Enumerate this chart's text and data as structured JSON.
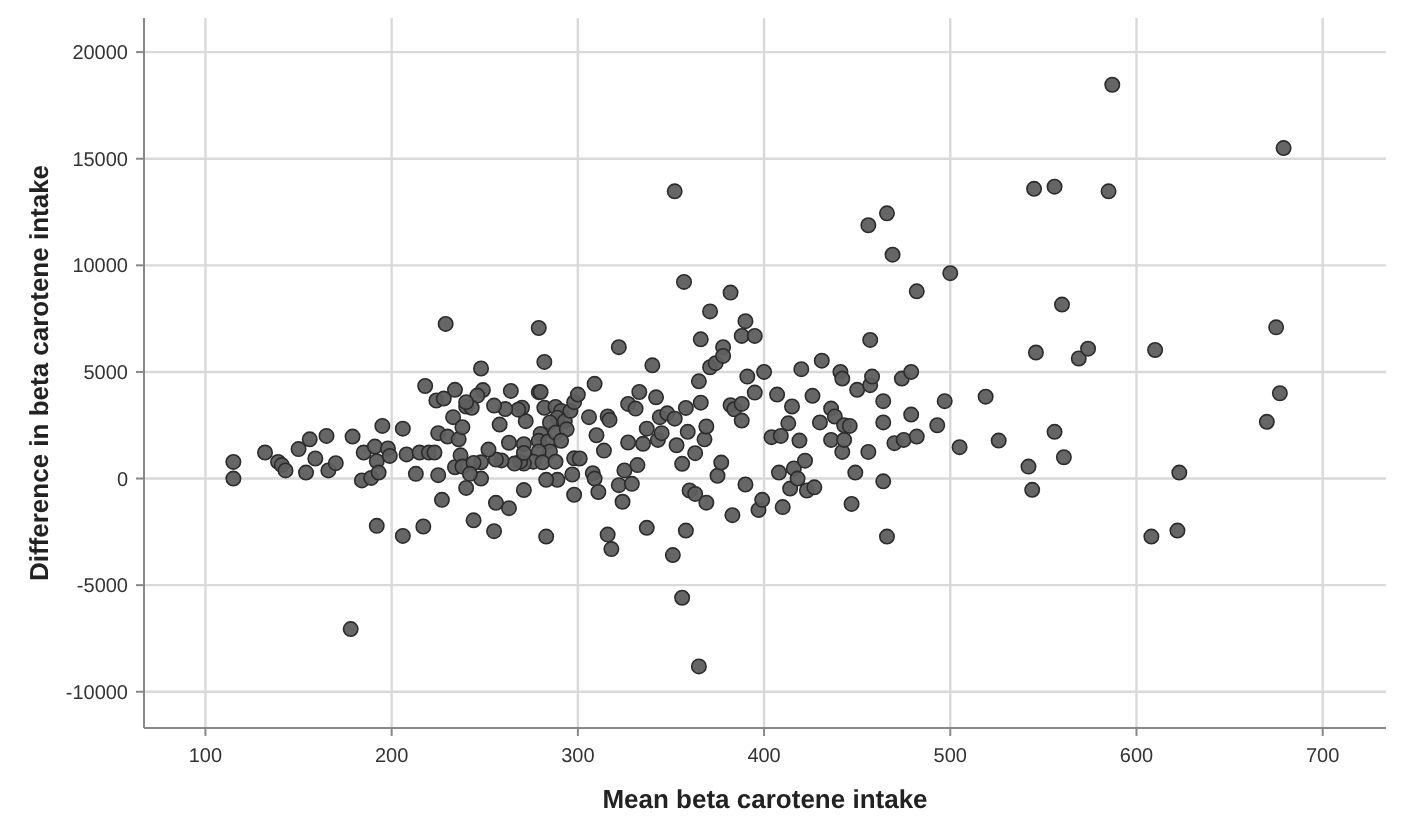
{
  "chart_data": {
    "type": "scatter",
    "xlabel": "Mean beta carotene intake",
    "ylabel": "Difference in beta carotene intake",
    "xlim": [
      67,
      734
    ],
    "ylim": [
      -11700,
      21600
    ],
    "xticks": [
      100,
      200,
      300,
      400,
      500,
      600,
      700
    ],
    "yticks": [
      -10000,
      -5000,
      0,
      5000,
      10000,
      15000,
      20000
    ],
    "grid": true,
    "marker": "circle",
    "series": [
      {
        "color": "#5e5e5e",
        "x": [
          115,
          115,
          132,
          139,
          141,
          143,
          150,
          154,
          156,
          159,
          165,
          166,
          170,
          178,
          179,
          184,
          185,
          189,
          191,
          192,
          192,
          193,
          195,
          198,
          199,
          206,
          206,
          208,
          213,
          215,
          217,
          218,
          220,
          223,
          224,
          225,
          225,
          227,
          228,
          229,
          230,
          233,
          234,
          234,
          236,
          237,
          238,
          238,
          240,
          279,
          282,
          288,
          291,
          289,
          285,
          280,
          279,
          284,
          288,
          293,
          296,
          298,
          294,
          291,
          285,
          279,
          276,
          281,
          288,
          289,
          283,
          297,
          298,
          298,
          271,
          271,
          269,
          266,
          271,
          272,
          270,
          268,
          264,
          263,
          259,
          261,
          258,
          255,
          256,
          252,
          248,
          248,
          244,
          242,
          240,
          244,
          256,
          255,
          283,
          263,
          248,
          249,
          246,
          243,
          240,
          271,
          279,
          282,
          280,
          300,
          301,
          306,
          309,
          308,
          309,
          311,
          310,
          314,
          316,
          317,
          316,
          318,
          322,
          322,
          324,
          325,
          327,
          327,
          329,
          331,
          332,
          333,
          335,
          337,
          337,
          340,
          342,
          343,
          344,
          345,
          348,
          351,
          352,
          352,
          353,
          356,
          356,
          357,
          358,
          358,
          359,
          360,
          363,
          363,
          365,
          365,
          366,
          366,
          368,
          369,
          369,
          371,
          371,
          374,
          375,
          377,
          378,
          378,
          382,
          383,
          382,
          384,
          388,
          388,
          388,
          390,
          390,
          391,
          395,
          395,
          397,
          399,
          400,
          404,
          407,
          408,
          409,
          410,
          413,
          414,
          415,
          416,
          418,
          419,
          420,
          422,
          423,
          426,
          427,
          430,
          431,
          436,
          436,
          438,
          441,
          442,
          442,
          443,
          443,
          446,
          447,
          449,
          450,
          456,
          456,
          457,
          457,
          458,
          464,
          464,
          464,
          466,
          466,
          469,
          470,
          474,
          475,
          479,
          479,
          482,
          482,
          493,
          497,
          500,
          505,
          519,
          526,
          542,
          544,
          545,
          546,
          556,
          556,
          560,
          561,
          569,
          574,
          585,
          587,
          608,
          610,
          622,
          623,
          670,
          675,
          677,
          679
        ],
        "values": [
          780,
          0,
          1220,
          780,
          630,
          380,
          1380,
          280,
          1840,
          940,
          2000,
          380,
          720,
          -7060,
          1970,
          -90,
          1220,
          30,
          1500,
          810,
          -2220,
          280,
          2470,
          1410,
          1060,
          -2690,
          2340,
          1130,
          220,
          1220,
          -2250,
          4340,
          1220,
          1220,
          3660,
          160,
          2130,
          -1000,
          3750,
          7250,
          1970,
          2880,
          4160,
          530,
          1840,
          1090,
          560,
          2410,
          3380,
          4050,
          3320,
          3360,
          3170,
          2850,
          2630,
          2090,
          1770,
          1740,
          2150,
          2690,
          3170,
          3580,
          2310,
          1770,
          1270,
          1270,
          790,
          760,
          790,
          -60,
          -60,
          190,
          950,
          -760,
          -540,
          700,
          790,
          700,
          1610,
          2690,
          3320,
          3230,
          4110,
          1680,
          850,
          3260,
          2530,
          3420,
          890,
          1360,
          760,
          0,
          730,
          220,
          -440,
          -1960,
          -1140,
          -2470,
          -2720,
          -1390,
          5160,
          4150,
          3890,
          3320,
          3580,
          1200,
          7060,
          5470,
          4060,
          3940,
          940,
          2880,
          4440,
          250,
          0,
          -630,
          2030,
          1310,
          2910,
          2750,
          -2630,
          -3310,
          6160,
          -310,
          -1090,
          380,
          3500,
          1690,
          -250,
          3280,
          630,
          4060,
          1630,
          2340,
          -2310,
          5310,
          3810,
          1810,
          2880,
          2130,
          3060,
          -3590,
          13470,
          2810,
          1560,
          -5590,
          690,
          9220,
          -2440,
          3310,
          2190,
          -560,
          -720,
          1190,
          -8810,
          4560,
          3560,
          6530,
          1840,
          2440,
          -1130,
          7840,
          5220,
          5410,
          130,
          750,
          6160,
          5750,
          8720,
          -1720,
          3440,
          3250,
          3500,
          6690,
          2720,
          -280,
          7380,
          4780,
          6690,
          4030,
          -1470,
          -1000,
          5000,
          1940,
          3940,
          280,
          2000,
          -1340,
          2590,
          -470,
          3380,
          470,
          0,
          1780,
          5130,
          840,
          -560,
          3880,
          -410,
          2630,
          5530,
          3280,
          1810,
          2910,
          5000,
          4690,
          1250,
          1810,
          2500,
          2470,
          -1190,
          280,
          4160,
          11880,
          1250,
          4380,
          6500,
          4780,
          3630,
          2630,
          -130,
          12440,
          -2720,
          10500,
          1660,
          4690,
          1810,
          5000,
          3000,
          1970,
          8780,
          2500,
          3630,
          9630,
          1470,
          3840,
          1780,
          560,
          -530,
          13590,
          5910,
          13690,
          2190,
          8160,
          1000,
          5630,
          6090,
          13470,
          18470,
          -2720,
          6030,
          -2440,
          280,
          2660,
          7090,
          4000,
          15500
        ]
      }
    ]
  }
}
